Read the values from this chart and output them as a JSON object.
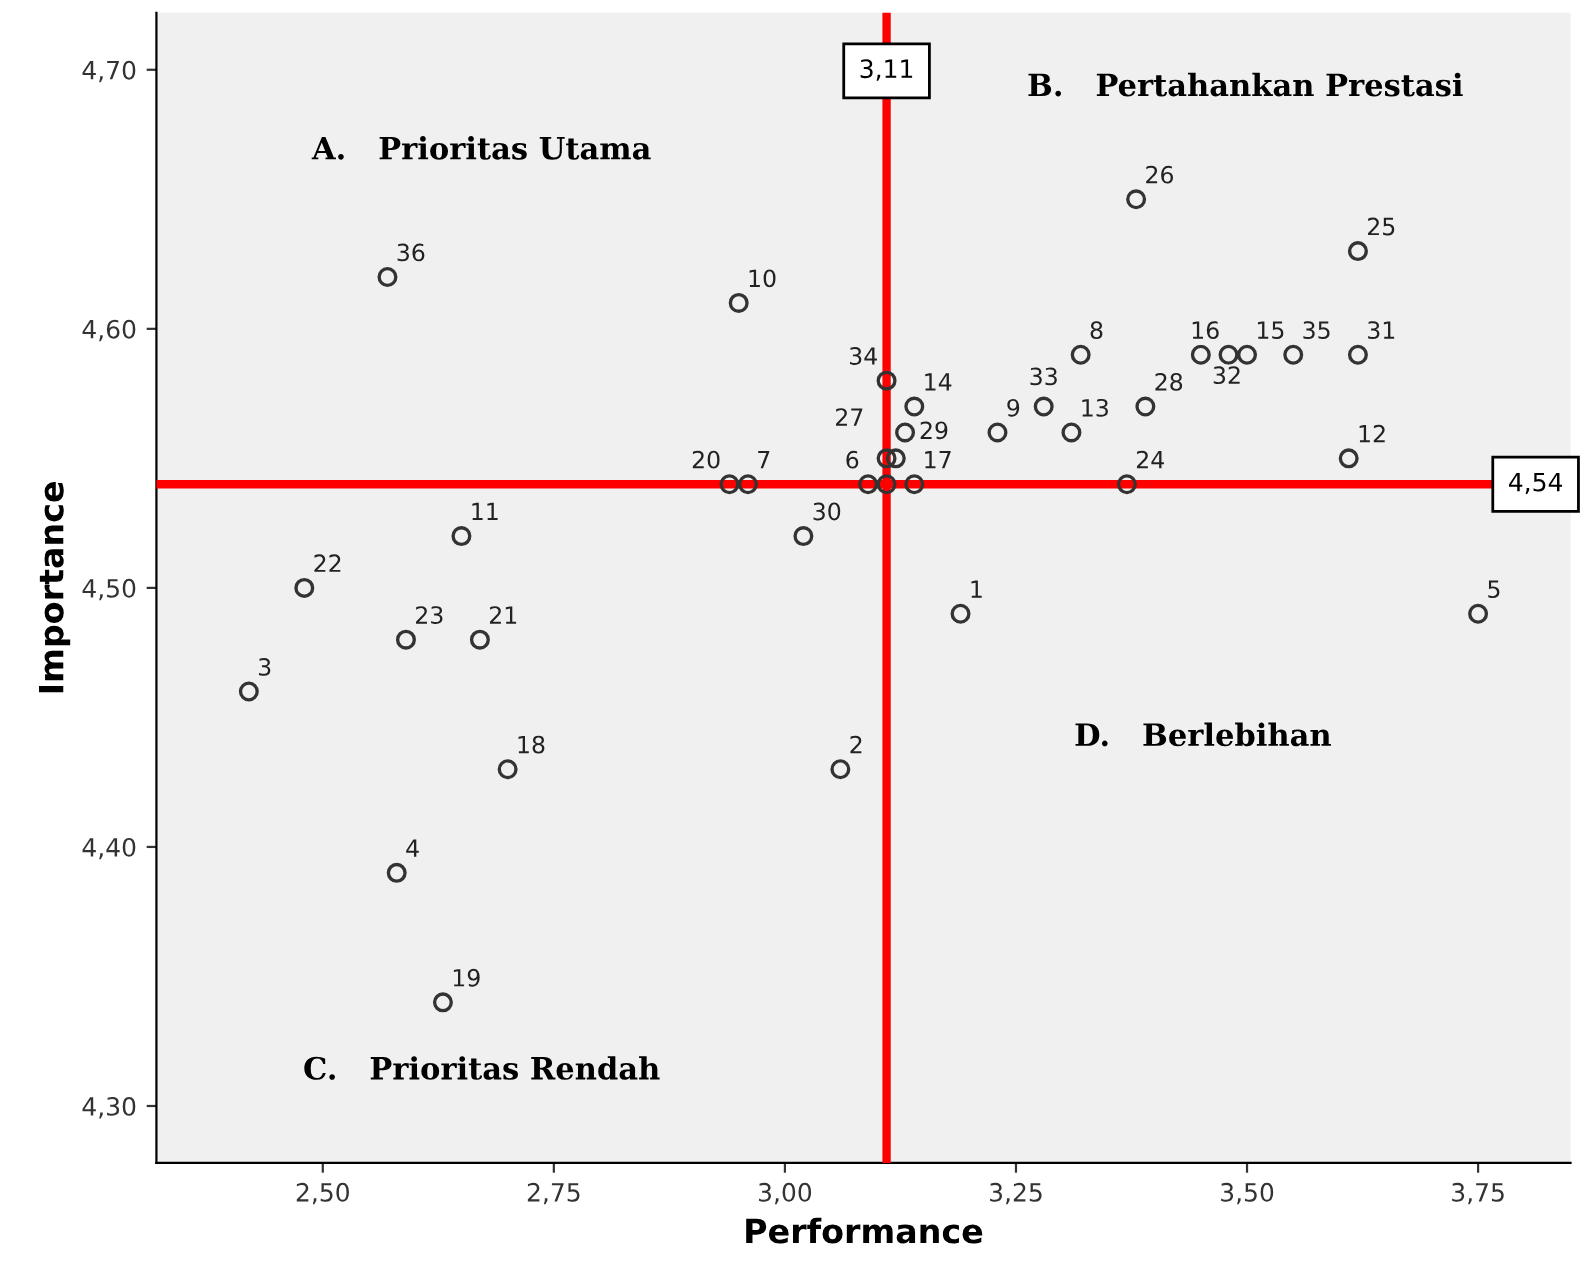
{
  "chart_data": {
    "type": "scatter",
    "xlabel": "Performance",
    "ylabel": "Importance",
    "x": [
      3.19,
      3.06,
      2.42,
      2.58,
      3.75,
      3.09,
      2.96,
      3.32,
      3.23,
      2.95,
      2.65,
      3.61,
      3.31,
      3.14,
      3.5,
      3.48,
      3.14,
      2.7,
      2.63,
      2.94,
      2.67,
      2.48,
      2.59,
      3.37,
      3.62,
      3.38,
      3.11,
      3.39,
      3.13,
      3.02,
      3.62,
      3.45,
      3.28,
      3.11,
      3.55,
      2.57,
      3.12,
      3.11
    ],
    "values": [
      4.49,
      4.43,
      4.46,
      4.39,
      4.49,
      4.54,
      4.54,
      4.59,
      4.56,
      4.61,
      4.52,
      4.55,
      4.56,
      4.57,
      4.59,
      4.59,
      4.54,
      4.43,
      4.34,
      4.54,
      4.48,
      4.5,
      4.48,
      4.54,
      4.63,
      4.65,
      4.55,
      4.57,
      4.56,
      4.52,
      4.59,
      4.59,
      4.57,
      4.58,
      4.59,
      4.62,
      4.55,
      4.54
    ],
    "color": "#333333",
    "marker": "circle",
    "grid": false,
    "xlim": [
      2.32,
      3.85
    ],
    "ylim": [
      4.278,
      4.722
    ],
    "xticks": [
      {
        "value": 2.5,
        "label": "2,50"
      },
      {
        "value": 2.75,
        "label": "2,75"
      },
      {
        "value": 3.0,
        "label": "3,00"
      },
      {
        "value": 3.25,
        "label": "3,25"
      },
      {
        "value": 3.5,
        "label": "3,50"
      },
      {
        "value": 3.75,
        "label": "3,75"
      }
    ],
    "yticks": [
      {
        "value": 4.3,
        "label": "4,30"
      },
      {
        "value": 4.4,
        "label": "4,40"
      },
      {
        "value": 4.5,
        "label": "4,50"
      },
      {
        "value": 4.6,
        "label": "4,60"
      },
      {
        "value": 4.7,
        "label": "4,70"
      }
    ],
    "ref_lines": [
      {
        "axis": "x",
        "value": 3.11,
        "label": "3,11",
        "color": "#ff0000"
      },
      {
        "axis": "y",
        "value": 4.54,
        "label": "4,54",
        "color": "#ff0000"
      }
    ],
    "annotations": [
      "A.   Prioritas Utama",
      "B.   Pertahankan Prestasi",
      "C.   Prioritas Rendah",
      "D.   Berlebihan",
      {
        "text": "1",
        "x": 3.19,
        "y": 4.49
      },
      {
        "text": "2",
        "x": 3.06,
        "y": 4.43
      },
      {
        "text": "3",
        "x": 2.42,
        "y": 4.46
      },
      {
        "text": "4",
        "x": 2.58,
        "y": 4.39
      },
      {
        "text": "5",
        "x": 3.75,
        "y": 4.49
      },
      {
        "text": "6",
        "x": 3.09,
        "y": 4.54
      },
      {
        "text": "7",
        "x": 2.96,
        "y": 4.54
      },
      {
        "text": "8",
        "x": 3.32,
        "y": 4.59
      },
      {
        "text": "9",
        "x": 3.23,
        "y": 4.56
      },
      {
        "text": "10",
        "x": 2.95,
        "y": 4.61
      },
      {
        "text": "11",
        "x": 2.65,
        "y": 4.52
      },
      {
        "text": "12",
        "x": 3.61,
        "y": 4.55
      },
      {
        "text": "13",
        "x": 3.31,
        "y": 4.56
      },
      {
        "text": "14",
        "x": 3.14,
        "y": 4.57
      },
      {
        "text": "15",
        "x": 3.5,
        "y": 4.59
      },
      {
        "text": "16",
        "x": 3.48,
        "y": 4.59
      },
      {
        "text": "17",
        "x": 3.14,
        "y": 4.54
      },
      {
        "text": "18",
        "x": 2.7,
        "y": 4.43
      },
      {
        "text": "19",
        "x": 2.63,
        "y": 4.34
      },
      {
        "text": "20",
        "x": 2.94,
        "y": 4.54
      },
      {
        "text": "21",
        "x": 2.67,
        "y": 4.48
      },
      {
        "text": "22",
        "x": 2.48,
        "y": 4.5
      },
      {
        "text": "23",
        "x": 2.59,
        "y": 4.48
      },
      {
        "text": "24",
        "x": 3.37,
        "y": 4.54
      },
      {
        "text": "25",
        "x": 3.62,
        "y": 4.63
      },
      {
        "text": "26",
        "x": 3.38,
        "y": 4.65
      },
      {
        "text": "27",
        "x": 3.11,
        "y": 4.55
      },
      {
        "text": "28",
        "x": 3.39,
        "y": 4.57
      },
      {
        "text": "29",
        "x": 3.13,
        "y": 4.56
      },
      {
        "text": "30",
        "x": 3.02,
        "y": 4.52
      },
      {
        "text": "31",
        "x": 3.62,
        "y": 4.59
      },
      {
        "text": "32",
        "x": 3.45,
        "y": 4.59
      },
      {
        "text": "33",
        "x": 3.28,
        "y": 4.57
      },
      {
        "text": "34",
        "x": 3.11,
        "y": 4.58
      },
      {
        "text": "35",
        "x": 3.55,
        "y": 4.59
      },
      {
        "text": "36",
        "x": 2.57,
        "y": 4.62
      }
    ]
  }
}
